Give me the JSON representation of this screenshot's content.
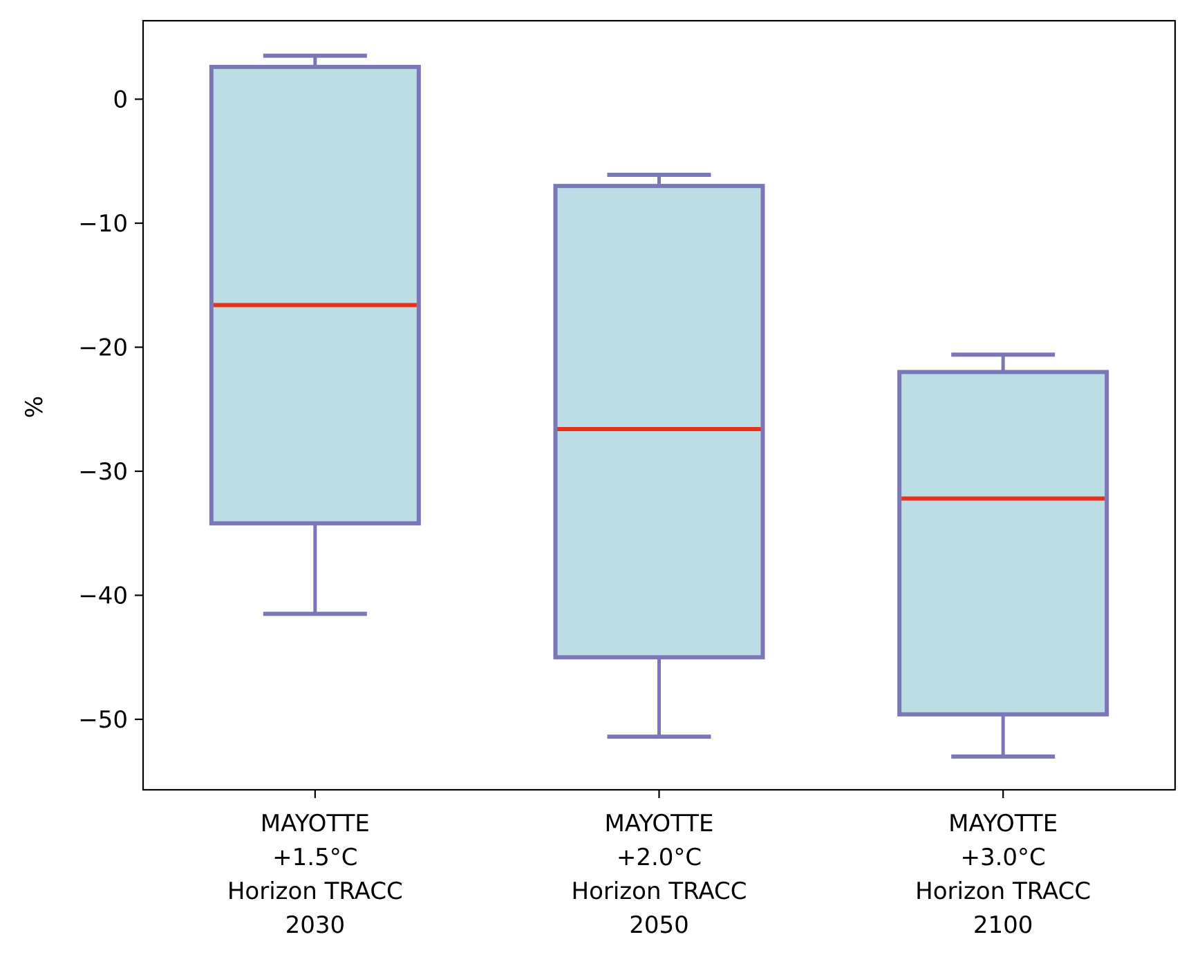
{
  "chart_data": {
    "type": "boxplot",
    "title": "",
    "xlabel": "",
    "ylabel": "%",
    "ylim": [
      -56,
      6.5
    ],
    "yticks": [
      0,
      -10,
      -20,
      -30,
      -40,
      -50
    ],
    "ytick_labels": [
      "0",
      "−10",
      "−20",
      "−30",
      "−40",
      "−50"
    ],
    "categories": [
      [
        "MAYOTTE",
        "+1.5°C",
        "Horizon TRACC",
        "2030"
      ],
      [
        "MAYOTTE",
        "+2.0°C",
        "Horizon TRACC",
        "2050"
      ],
      [
        "MAYOTTE",
        "+3.0°C",
        "Horizon TRACC",
        "2100"
      ]
    ],
    "boxes": [
      {
        "whisker_low": -41.5,
        "q1": -34.2,
        "median": -16.6,
        "q3": 2.6,
        "whisker_high": 3.5
      },
      {
        "whisker_low": -51.4,
        "q1": -45.0,
        "median": -26.6,
        "q3": -7.0,
        "whisker_high": -6.1
      },
      {
        "whisker_low": -53.0,
        "q1": -49.6,
        "median": -32.2,
        "q3": -22.0,
        "whisker_high": -20.6
      }
    ],
    "colors": {
      "box_fill": "#bbdde3",
      "box_edge": "#7b76b7",
      "median": "#e8301b",
      "axis": "#000000"
    }
  }
}
